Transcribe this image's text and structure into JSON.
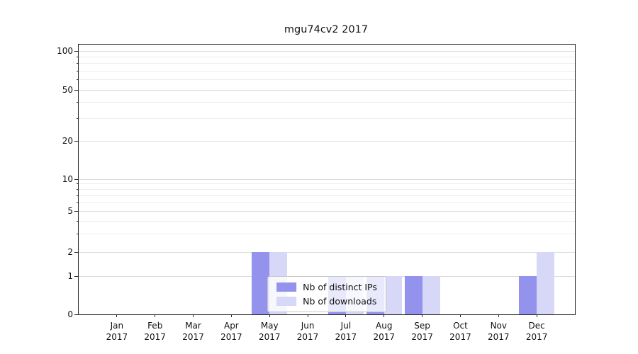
{
  "figure": {
    "title": "mgu74cv2 2017"
  },
  "chart_data": {
    "type": "bar",
    "title": "mgu74cv2 2017",
    "categories": [
      "Jan 2017",
      "Feb 2017",
      "Mar 2017",
      "Apr 2017",
      "May 2017",
      "Jun 2017",
      "Jul 2017",
      "Aug 2017",
      "Sep 2017",
      "Oct 2017",
      "Nov 2017",
      "Dec 2017"
    ],
    "series": [
      {
        "name": "Nb of distinct IPs",
        "color": "#9393ee",
        "values": [
          0,
          0,
          0,
          0,
          2,
          0,
          1,
          1,
          1,
          0,
          0,
          1
        ]
      },
      {
        "name": "Nb of downloads",
        "color": "#d7d7f8",
        "values": [
          0,
          0,
          0,
          0,
          2,
          0,
          1,
          1,
          1,
          0,
          0,
          2
        ]
      }
    ],
    "yscale": "symlog",
    "yticks": [
      0,
      1,
      2,
      5,
      10,
      20,
      50,
      100
    ],
    "minor_yticks": [
      3,
      4,
      6,
      7,
      8,
      9,
      30,
      40,
      60,
      70,
      80,
      90
    ],
    "ylim": [
      0,
      110
    ],
    "grid": "horizontal",
    "legend_position": "lower center"
  }
}
